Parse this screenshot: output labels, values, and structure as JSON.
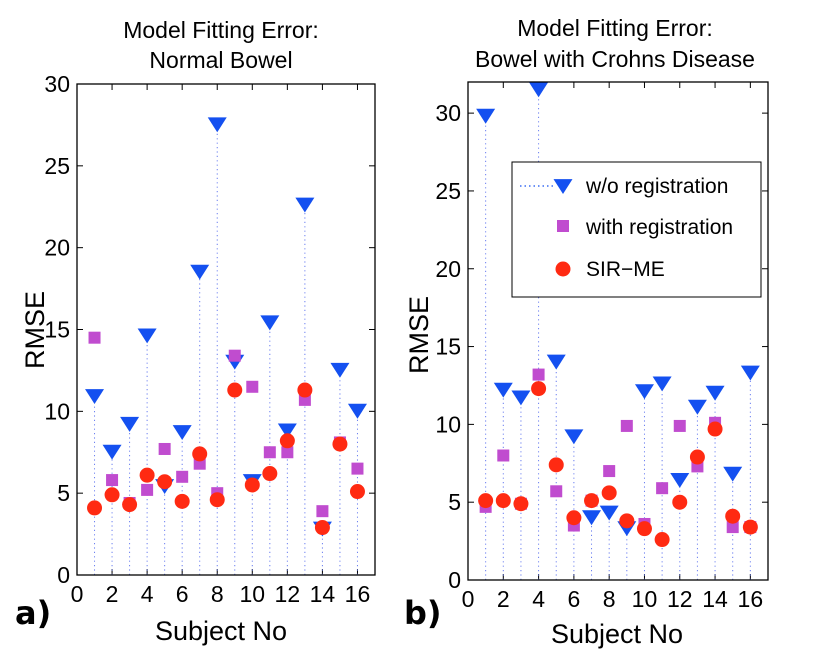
{
  "colors": {
    "w/o registration": "#1450f0",
    "with registration": "#c04ccf",
    "SIR-ME": "#ff2a12",
    "axis": "#000000",
    "stem": "#6a7ef0"
  },
  "legend": {
    "items": [
      {
        "label": "w/o registration",
        "series": "w/o registration"
      },
      {
        "label": "with registration",
        "series": "with registration"
      },
      {
        "label": "SIR−ME",
        "series": "SIR-ME"
      }
    ]
  },
  "chart_data": [
    {
      "type": "scatter",
      "panel_label": "a)",
      "title_lines": [
        "Model Fitting Error:",
        "Normal Bowel"
      ],
      "xlabel": "Subject No",
      "ylabel": "RMSE",
      "xlim": [
        0,
        17
      ],
      "ylim": [
        0,
        30
      ],
      "xticks": [
        "0",
        "2",
        "4",
        "6",
        "8",
        "10",
        "12",
        "14",
        "16"
      ],
      "yticks": [
        "0",
        "5",
        "10",
        "15",
        "20",
        "25",
        "30"
      ],
      "x": [
        1,
        2,
        3,
        4,
        5,
        6,
        7,
        8,
        9,
        10,
        11,
        12,
        13,
        14,
        15,
        16
      ],
      "series": [
        {
          "name": "w/o registration",
          "marker": "triangle-down",
          "stem": true,
          "values": [
            11.0,
            7.6,
            9.3,
            14.7,
            5.5,
            8.8,
            18.6,
            27.6,
            13.1,
            5.8,
            15.5,
            8.9,
            22.7,
            2.9,
            12.6,
            10.1
          ]
        },
        {
          "name": "with registration",
          "marker": "square",
          "values": [
            14.5,
            5.8,
            4.4,
            5.2,
            7.7,
            6.0,
            6.8,
            5.0,
            13.4,
            11.5,
            7.5,
            7.5,
            10.7,
            3.9,
            8.1,
            6.5
          ]
        },
        {
          "name": "SIR-ME",
          "marker": "circle",
          "values": [
            4.1,
            4.9,
            4.3,
            6.1,
            5.7,
            4.5,
            7.4,
            4.6,
            11.3,
            5.5,
            6.2,
            8.2,
            11.3,
            2.9,
            8.0,
            5.1
          ]
        }
      ]
    },
    {
      "type": "scatter",
      "panel_label": "b)",
      "title_lines": [
        "Model Fitting Error:",
        "Bowel with Crohns Disease"
      ],
      "xlabel": "Subject No",
      "ylabel": "RMSE",
      "xlim": [
        0,
        17
      ],
      "ylim": [
        0,
        32
      ],
      "xticks": [
        "0",
        "2",
        "4",
        "6",
        "8",
        "10",
        "12",
        "14",
        "16"
      ],
      "yticks": [
        "0",
        "5",
        "10",
        "15",
        "20",
        "25",
        "30"
      ],
      "x": [
        1,
        2,
        3,
        4,
        5,
        6,
        7,
        8,
        9,
        10,
        11,
        12,
        13,
        14,
        15,
        16
      ],
      "series": [
        {
          "name": "w/o registration",
          "marker": "triangle-down",
          "stem": true,
          "values": [
            29.9,
            12.3,
            11.8,
            31.6,
            14.1,
            9.3,
            4.1,
            4.4,
            3.4,
            12.2,
            12.7,
            6.5,
            11.2,
            12.1,
            6.9,
            13.4
          ]
        },
        {
          "name": "with registration",
          "marker": "square",
          "values": [
            4.7,
            8.0,
            4.9,
            13.2,
            5.7,
            3.5,
            5.1,
            7.0,
            9.9,
            3.6,
            5.9,
            9.9,
            7.3,
            10.1,
            3.4,
            3.4
          ]
        },
        {
          "name": "SIR-ME",
          "marker": "circle",
          "values": [
            5.1,
            5.1,
            4.9,
            12.3,
            7.4,
            4.0,
            5.1,
            5.6,
            3.8,
            3.3,
            2.6,
            5.0,
            7.9,
            9.7,
            4.1,
            3.4
          ]
        }
      ]
    }
  ]
}
